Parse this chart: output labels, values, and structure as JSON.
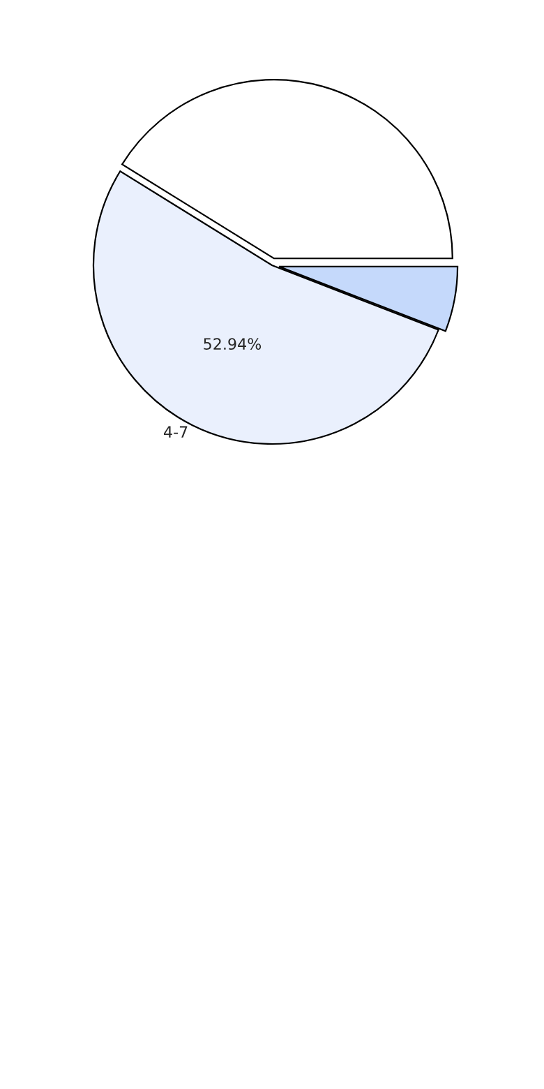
{
  "chart_data": {
    "type": "pie",
    "categories": [
      null,
      "4-7",
      null
    ],
    "values": [
      41.18,
      52.94,
      5.88
    ],
    "colors": [
      "#ffffff",
      "#eaf0fd",
      "#c5d9fb"
    ],
    "value_labels": [
      null,
      "52.94%",
      null
    ]
  }
}
